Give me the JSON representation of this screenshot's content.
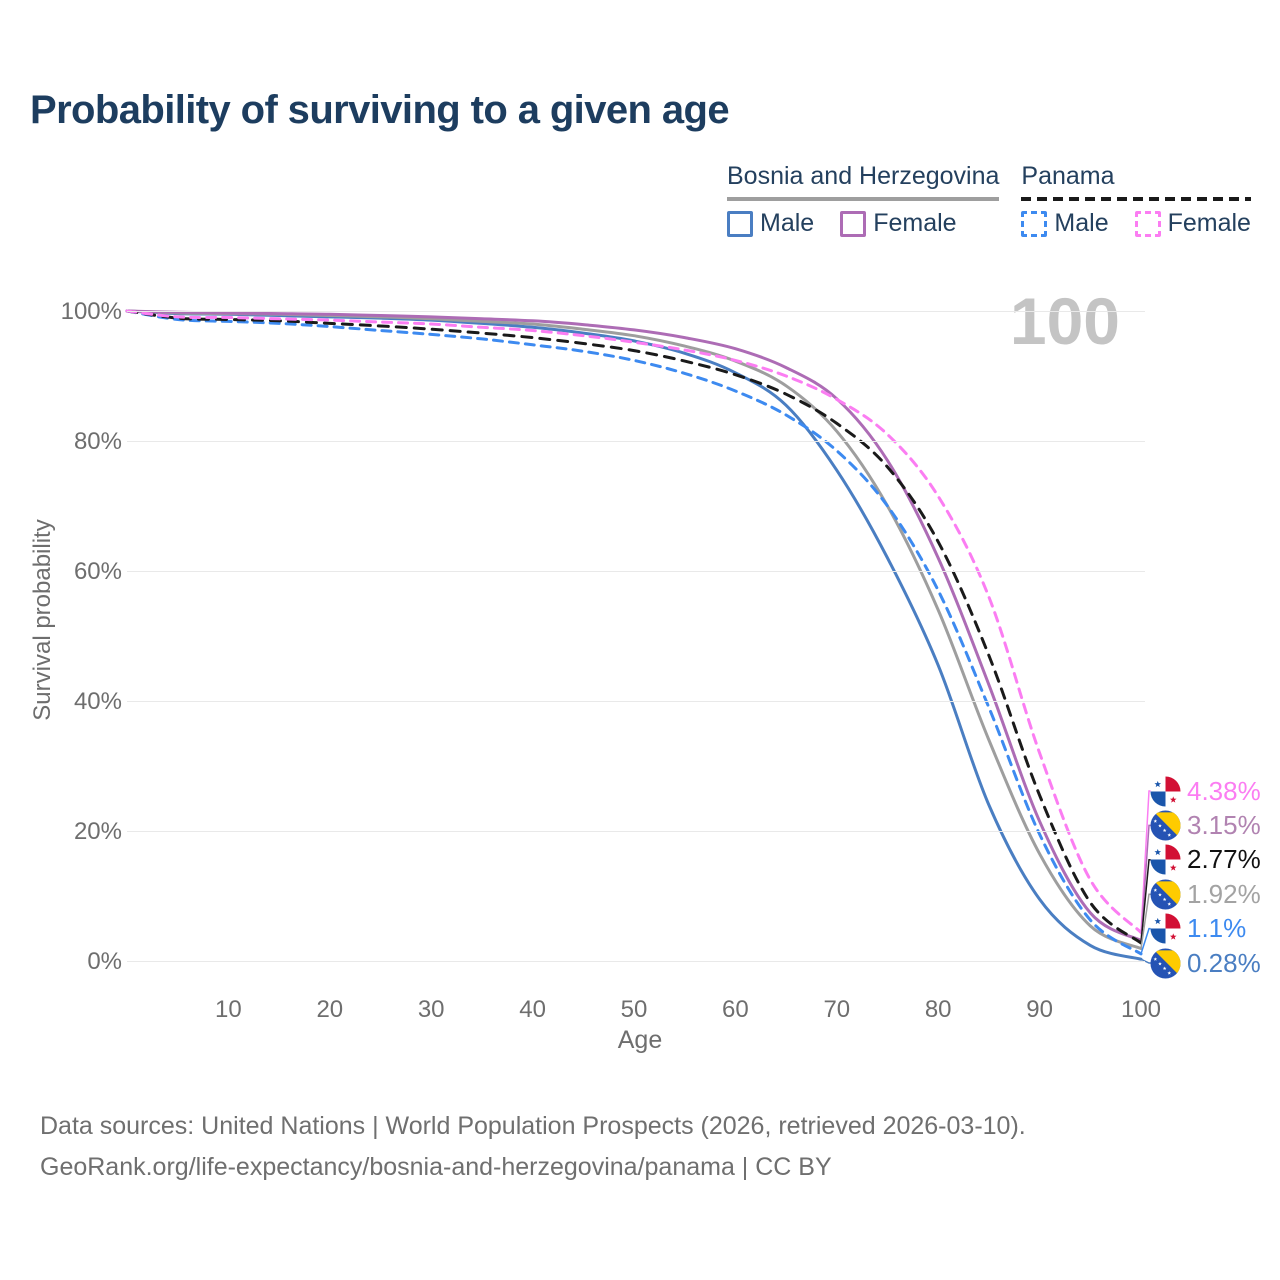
{
  "title": "Probability of surviving to a given age",
  "watermark": "100",
  "legend": {
    "groups": [
      {
        "country": "Bosnia and Herzegovina",
        "line_style": "solid",
        "underline_color": "#9e9e9e",
        "items": [
          {
            "label": "Male",
            "color": "#4a7ec2",
            "dashed": false
          },
          {
            "label": "Female",
            "color": "#ad6cb5",
            "dashed": false
          }
        ]
      },
      {
        "country": "Panama",
        "line_style": "dashed",
        "underline_color": "#1a1a1a",
        "items": [
          {
            "label": "Male",
            "color": "#3d8af0",
            "dashed": true
          },
          {
            "label": "Female",
            "color": "#fb7df2",
            "dashed": true
          }
        ]
      }
    ]
  },
  "chart_data": {
    "type": "line",
    "title": "Probability of surviving to a given age",
    "xlabel": "Age",
    "ylabel": "Survival probability",
    "xlim": [
      0,
      100
    ],
    "ylim": [
      0,
      100
    ],
    "grid": "horizontal",
    "legend_position": "top-right",
    "y_ticks": [
      {
        "value": 0,
        "label": "0%"
      },
      {
        "value": 20,
        "label": "20%"
      },
      {
        "value": 40,
        "label": "40%"
      },
      {
        "value": 60,
        "label": "60%"
      },
      {
        "value": 80,
        "label": "80%"
      },
      {
        "value": 100,
        "label": "100%"
      }
    ],
    "x_ticks": [
      {
        "value": 10,
        "label": "10"
      },
      {
        "value": 20,
        "label": "20"
      },
      {
        "value": 30,
        "label": "30"
      },
      {
        "value": 40,
        "label": "40"
      },
      {
        "value": 50,
        "label": "50"
      },
      {
        "value": 60,
        "label": "60"
      },
      {
        "value": 70,
        "label": "70"
      },
      {
        "value": 80,
        "label": "80"
      },
      {
        "value": 90,
        "label": "90"
      },
      {
        "value": 100,
        "label": "100"
      }
    ],
    "x": [
      0,
      5,
      10,
      15,
      20,
      25,
      30,
      35,
      40,
      45,
      50,
      55,
      60,
      65,
      70,
      75,
      80,
      85,
      90,
      95,
      100
    ],
    "series": [
      {
        "id": "bih-male",
        "name": "Bosnia and Herzegovina — Male",
        "country": "bosnia",
        "color": "#4a7ec2",
        "dashed": false,
        "values": [
          100,
          99.6,
          99.5,
          99.3,
          99.1,
          98.9,
          98.6,
          98.1,
          97.5,
          96.6,
          95.4,
          93.5,
          90.5,
          85.5,
          75.5,
          62,
          45.5,
          24,
          9.5,
          2.4,
          0.28
        ]
      },
      {
        "id": "bih-total",
        "name": "Bosnia and Herzegovina",
        "country": "bosnia",
        "color": "#9e9e9e",
        "dashed": false,
        "values": [
          100,
          99.7,
          99.6,
          99.5,
          99.3,
          99.1,
          98.8,
          98.4,
          98,
          97.2,
          96.2,
          94.6,
          92.3,
          88.5,
          81.5,
          70,
          54,
          34,
          16.5,
          5.4,
          1.92
        ]
      },
      {
        "id": "bih-female",
        "name": "Bosnia and Herzegovina — Female",
        "country": "bosnia",
        "color": "#ad6cb5",
        "dashed": false,
        "values": [
          100,
          99.8,
          99.7,
          99.6,
          99.5,
          99.3,
          99.1,
          98.8,
          98.5,
          97.9,
          97.1,
          95.9,
          94.2,
          91.3,
          86.5,
          77,
          62,
          42.5,
          21.5,
          7.4,
          3.15
        ]
      },
      {
        "id": "panama-male",
        "name": "Panama — Male",
        "country": "panama",
        "color": "#3d8af0",
        "dashed": true,
        "values": [
          100,
          98.7,
          98.4,
          98.1,
          97.6,
          97,
          96.4,
          95.7,
          94.8,
          93.8,
          92.4,
          90.4,
          87.7,
          84,
          78.5,
          70,
          57,
          39,
          19.5,
          6.3,
          1.1
        ]
      },
      {
        "id": "panama-total",
        "name": "Panama",
        "country": "panama",
        "color": "#1a1a1a",
        "dashed": true,
        "values": [
          100,
          98.9,
          98.7,
          98.5,
          98.1,
          97.7,
          97.2,
          96.6,
          95.9,
          95,
          93.9,
          92.3,
          90.2,
          87.2,
          82.7,
          76,
          64.5,
          47,
          25.5,
          9,
          2.77
        ]
      },
      {
        "id": "panama-female",
        "name": "Panama — Female",
        "country": "panama",
        "color": "#fb7df2",
        "dashed": true,
        "values": [
          100,
          99.1,
          99,
          98.8,
          98.6,
          98.3,
          98,
          97.5,
          97,
          96.2,
          95.2,
          94,
          92.4,
          90,
          86.4,
          81,
          71.5,
          56,
          32,
          12.5,
          4.38
        ]
      }
    ],
    "end_labels": [
      {
        "series": "panama-female",
        "flag": "panama",
        "text": "4.38%",
        "color": "#fb7df2"
      },
      {
        "series": "bih-female",
        "flag": "bosnia",
        "text": "3.15%",
        "color": "#b183b1"
      },
      {
        "series": "panama-total",
        "flag": "panama",
        "text": "2.77%",
        "color": "#111111"
      },
      {
        "series": "bih-total",
        "flag": "bosnia",
        "text": "1.92%",
        "color": "#a3a3a3"
      },
      {
        "series": "panama-male",
        "flag": "panama",
        "text": "1.1%",
        "color": "#3d8af0"
      },
      {
        "series": "bih-male",
        "flag": "bosnia",
        "text": "0.28%",
        "color": "#4a7ec2"
      }
    ]
  },
  "footer": {
    "line1": "Data sources: United Nations | World Population Prospects (2026, retrieved 2026-03-10).",
    "line2": "GeoRank.org/life-expectancy/bosnia-and-herzegovina/panama | CC BY"
  }
}
